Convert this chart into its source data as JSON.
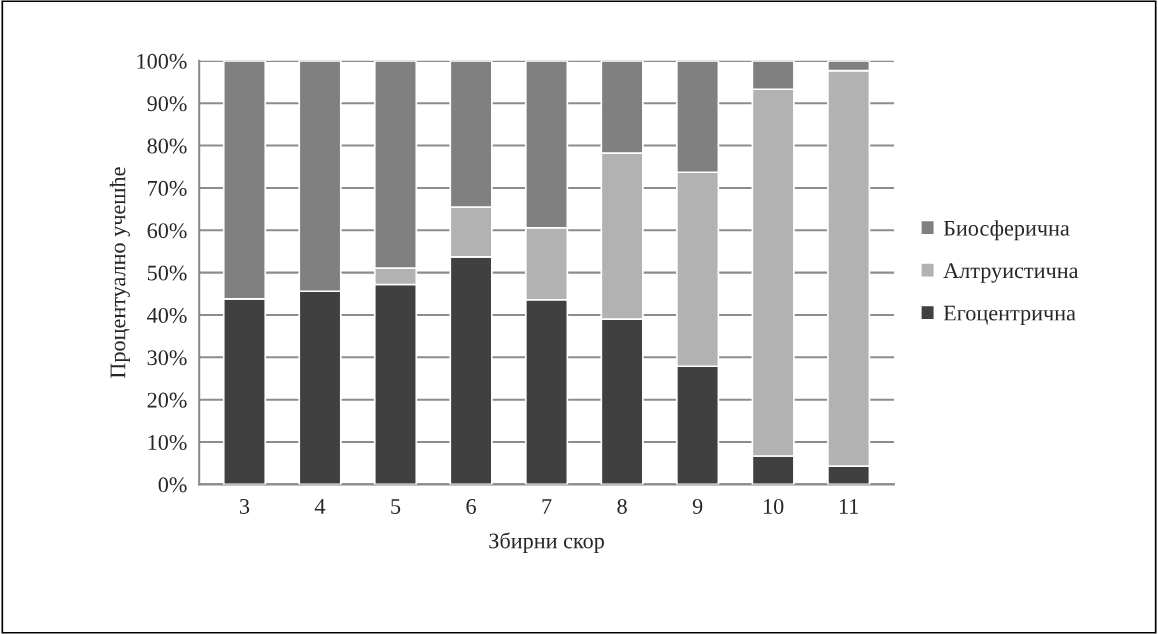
{
  "chart_data": {
    "type": "bar",
    "stacked": true,
    "xlabel": "Збирни скор",
    "ylabel": "Процентуално учешће",
    "categories": [
      "3",
      "4",
      "5",
      "6",
      "7",
      "8",
      "9",
      "10",
      "11"
    ],
    "series": [
      {
        "name": "Егоцентрична",
        "color": "#404040",
        "values": [
          43.8,
          45.6,
          47.2,
          53.7,
          43.6,
          39.0,
          27.9,
          6.7,
          4.3
        ]
      },
      {
        "name": "Алтруистична",
        "color": "#b2b2b2",
        "values": [
          null,
          null,
          3.9,
          11.8,
          17.0,
          39.2,
          45.8,
          86.6,
          93.4
        ]
      },
      {
        "name": "Биосферична",
        "color": "#808080",
        "values": [
          56.2,
          54.4,
          48.9,
          34.5,
          39.4,
          21.8,
          26.3,
          6.7,
          2.3
        ]
      }
    ],
    "ylim": [
      0,
      100
    ],
    "yticks": [
      {
        "value": 0,
        "label": "0%"
      },
      {
        "value": 10,
        "label": "10%"
      },
      {
        "value": 20,
        "label": "20%"
      },
      {
        "value": 30,
        "label": "30%"
      },
      {
        "value": 40,
        "label": "40%"
      },
      {
        "value": 50,
        "label": "50%"
      },
      {
        "value": 60,
        "label": "60%"
      },
      {
        "value": 70,
        "label": "70%"
      },
      {
        "value": 80,
        "label": "80%"
      },
      {
        "value": 90,
        "label": "90%"
      },
      {
        "value": 100,
        "label": "100%"
      }
    ],
    "grid": "y",
    "legend": "right"
  }
}
